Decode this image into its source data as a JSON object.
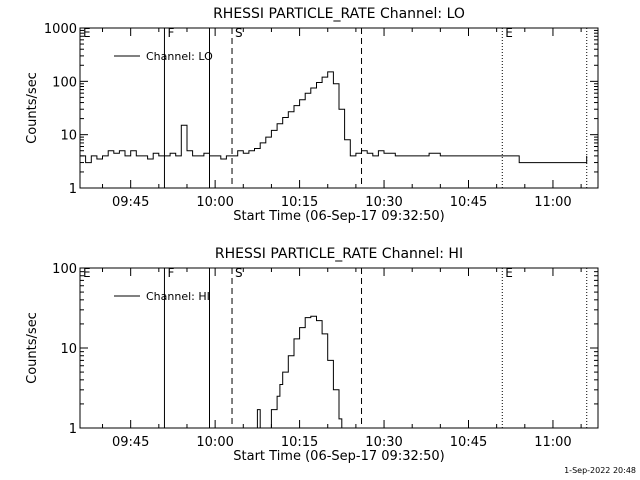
{
  "footer_timestamp": "1-Sep-2022 20:48",
  "chart_data": [
    {
      "type": "line",
      "title": "RHESSI PARTICLE_RATE Channel: LO",
      "xlabel": "Start Time (06-Sep-17 09:32:50)",
      "ylabel": "Counts/sec",
      "yscale": "log",
      "ylim": [
        1,
        1000
      ],
      "xlim_minutes_clock": [
        "09:36",
        "11:08"
      ],
      "x_ticks": [
        "09:45",
        "10:00",
        "10:15",
        "10:30",
        "10:45",
        "11:00"
      ],
      "y_ticks": [
        "1",
        "10",
        "100",
        "1000"
      ],
      "legend": {
        "label": "Channel: LO",
        "position": "top-left"
      },
      "markers": [
        {
          "label": "E",
          "time": "09:36",
          "style": "dotted"
        },
        {
          "label": "F",
          "time": "09:51",
          "style": "solid"
        },
        {
          "label": "",
          "time": "09:59",
          "style": "solid"
        },
        {
          "label": "S",
          "time": "10:03",
          "style": "dashed"
        },
        {
          "label": "",
          "time": "10:26",
          "style": "dashed"
        },
        {
          "label": "E",
          "time": "10:51",
          "style": "dotted"
        },
        {
          "label": "",
          "time": "11:06",
          "style": "dotted"
        }
      ],
      "series": [
        {
          "name": "Channel: LO",
          "time": [
            "09:36",
            "09:37",
            "09:38",
            "09:39",
            "09:40",
            "09:41",
            "09:42",
            "09:43",
            "09:44",
            "09:45",
            "09:46",
            "09:47",
            "09:48",
            "09:49",
            "09:50",
            "09:51",
            "09:52",
            "09:53",
            "09:54",
            "09:55",
            "09:56",
            "09:57",
            "09:58",
            "09:59",
            "10:00",
            "10:01",
            "10:02",
            "10:03",
            "10:04",
            "10:05",
            "10:06",
            "10:07",
            "10:08",
            "10:09",
            "10:10",
            "10:11",
            "10:12",
            "10:13",
            "10:14",
            "10:15",
            "10:16",
            "10:17",
            "10:18",
            "10:19",
            "10:20",
            "10:21",
            "10:22",
            "10:23",
            "10:24",
            "10:25",
            "10:26",
            "10:27",
            "10:28",
            "10:29",
            "10:30",
            "10:32",
            "10:34",
            "10:36",
            "10:38",
            "10:40",
            "10:42",
            "10:44",
            "10:46",
            "10:48",
            "10:50",
            "10:52",
            "10:54",
            "10:56",
            "10:58",
            "11:00",
            "11:02",
            "11:04",
            "11:06"
          ],
          "values": [
            4,
            3,
            4,
            3.5,
            4,
            5,
            4.5,
            5,
            4,
            5,
            4,
            4,
            3.5,
            4.5,
            4,
            4,
            4.5,
            4,
            15,
            5,
            4,
            4,
            4.5,
            4,
            4,
            3.5,
            4,
            4,
            5,
            4.5,
            5,
            5.5,
            7,
            9,
            12,
            16,
            21,
            27,
            35,
            45,
            60,
            75,
            95,
            120,
            150,
            90,
            30,
            8,
            4,
            4.5,
            5,
            4.5,
            4,
            5,
            4.5,
            4,
            4,
            4,
            4.5,
            4,
            4,
            4,
            4,
            4,
            4,
            4,
            3,
            3,
            3,
            3,
            3,
            3,
            4
          ]
        }
      ]
    },
    {
      "type": "line",
      "title": "RHESSI PARTICLE_RATE Channel: HI",
      "xlabel": "Start Time (06-Sep-17 09:32:50)",
      "ylabel": "Counts/sec",
      "yscale": "log",
      "ylim": [
        1,
        100
      ],
      "xlim_minutes_clock": [
        "09:36",
        "11:08"
      ],
      "x_ticks": [
        "09:45",
        "10:00",
        "10:15",
        "10:30",
        "10:45",
        "11:00"
      ],
      "y_ticks": [
        "1",
        "10",
        "100"
      ],
      "legend": {
        "label": "Channel: HI",
        "position": "top-left"
      },
      "markers": [
        {
          "label": "E",
          "time": "09:36",
          "style": "dotted"
        },
        {
          "label": "F",
          "time": "09:51",
          "style": "solid"
        },
        {
          "label": "",
          "time": "09:59",
          "style": "solid"
        },
        {
          "label": "S",
          "time": "10:03",
          "style": "dashed"
        },
        {
          "label": "",
          "time": "10:26",
          "style": "dashed"
        },
        {
          "label": "E",
          "time": "10:51",
          "style": "dotted"
        },
        {
          "label": "",
          "time": "11:06",
          "style": "dotted"
        }
      ],
      "series": [
        {
          "name": "Channel: HI",
          "time": [
            "10:07",
            "10:07.5",
            "10:08",
            "10:09",
            "10:10",
            "10:11",
            "10:11.5",
            "10:12",
            "10:13",
            "10:14",
            "10:15",
            "10:16",
            "10:17",
            "10:18",
            "10:19",
            "10:20",
            "10:21",
            "10:22",
            "10:22.5"
          ],
          "values": [
            1,
            1.7,
            1,
            1,
            1.7,
            2.5,
            3.5,
            5,
            8,
            13,
            18,
            24,
            25,
            22,
            15,
            7,
            3,
            1.3,
            1
          ]
        }
      ]
    }
  ]
}
